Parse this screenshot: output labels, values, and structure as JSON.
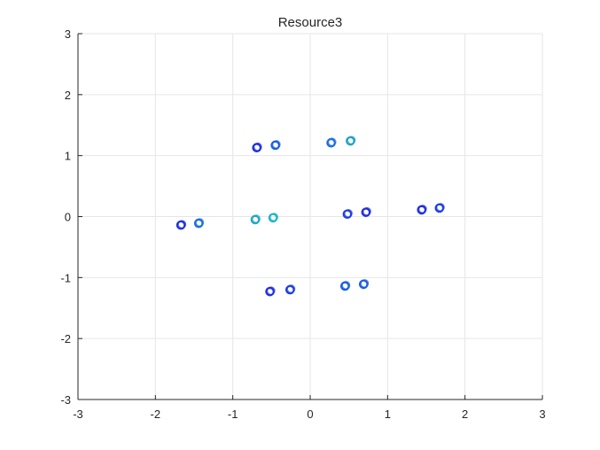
{
  "chart_data": {
    "type": "scatter",
    "title": "Resource3",
    "xlabel": "",
    "ylabel": "",
    "xlim": [
      -3,
      3
    ],
    "ylim": [
      -3,
      3
    ],
    "xticks": [
      "-3",
      "-2",
      "-1",
      "0",
      "1",
      "2",
      "3"
    ],
    "yticks": [
      "3",
      "2",
      "1",
      "0",
      "-1",
      "-2",
      "-3"
    ],
    "grid": true,
    "legend": null,
    "marker": "circle-open",
    "colors": {
      "dark_blue": "#1f2fe0",
      "mid_blue": "#1a6fe0",
      "teal": "#21b5c8",
      "axis": "#262626",
      "grid": "#e6e6e6"
    },
    "points": [
      {
        "x": -1.67,
        "y": -0.14,
        "color": "#1f2fe0"
      },
      {
        "x": -1.44,
        "y": -0.11,
        "color": "#1a6fe0"
      },
      {
        "x": -0.69,
        "y": 1.13,
        "color": "#1f2fe0"
      },
      {
        "x": -0.45,
        "y": 1.17,
        "color": "#1a5fe0"
      },
      {
        "x": -0.71,
        "y": -0.05,
        "color": "#21a8c8"
      },
      {
        "x": -0.48,
        "y": -0.02,
        "color": "#21b5c8"
      },
      {
        "x": 0.27,
        "y": 1.21,
        "color": "#1a6fe0"
      },
      {
        "x": 0.52,
        "y": 1.24,
        "color": "#21a0c8"
      },
      {
        "x": 0.48,
        "y": 0.04,
        "color": "#1f3fe0"
      },
      {
        "x": 0.72,
        "y": 0.07,
        "color": "#1f2fe0"
      },
      {
        "x": 1.44,
        "y": 0.11,
        "color": "#1f2fe0"
      },
      {
        "x": 1.67,
        "y": 0.14,
        "color": "#1f3fe0"
      },
      {
        "x": -0.52,
        "y": -1.23,
        "color": "#1f2fe0"
      },
      {
        "x": -0.26,
        "y": -1.2,
        "color": "#1f3fe0"
      },
      {
        "x": 0.45,
        "y": -1.14,
        "color": "#1a5fe0"
      },
      {
        "x": 0.69,
        "y": -1.11,
        "color": "#1a5fe0"
      }
    ]
  }
}
